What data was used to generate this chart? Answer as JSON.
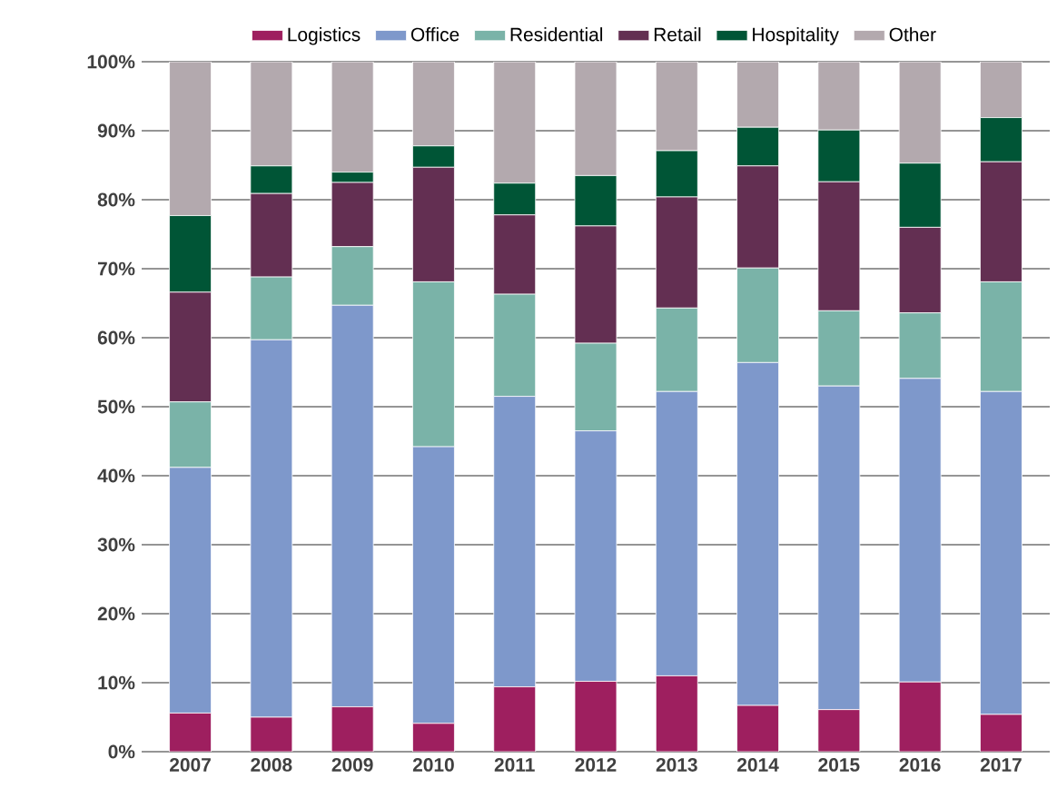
{
  "chart_data": {
    "type": "bar",
    "stacked": true,
    "legend": "top",
    "grid": "y",
    "categories": [
      "2007",
      "2008",
      "2009",
      "2010",
      "2011",
      "2012",
      "2013",
      "2014",
      "2015",
      "2016",
      "2017"
    ],
    "series": [
      {
        "name": "Logistics",
        "color": "#9e1f5f",
        "values": [
          5.6,
          5.0,
          6.5,
          4.1,
          9.4,
          10.2,
          11.0,
          6.7,
          6.1,
          10.1,
          5.4
        ]
      },
      {
        "name": "Office",
        "color": "#7e98cb",
        "values": [
          35.6,
          54.7,
          58.2,
          40.1,
          42.1,
          36.3,
          41.2,
          49.7,
          46.9,
          44.0,
          46.8
        ]
      },
      {
        "name": "Residential",
        "color": "#7ab3a8",
        "values": [
          9.5,
          9.1,
          8.5,
          23.9,
          14.8,
          12.7,
          12.1,
          13.7,
          10.9,
          9.5,
          15.9
        ]
      },
      {
        "name": "Retail",
        "color": "#632f52",
        "values": [
          15.9,
          12.1,
          9.3,
          16.6,
          11.5,
          17.0,
          16.1,
          14.8,
          18.7,
          12.4,
          17.4
        ]
      },
      {
        "name": "Hospitality",
        "color": "#005536",
        "values": [
          11.1,
          4.0,
          1.5,
          3.1,
          4.6,
          7.3,
          6.7,
          5.6,
          7.5,
          9.3,
          6.4
        ]
      },
      {
        "name": "Other",
        "color": "#b3a9ae",
        "values": [
          22.3,
          15.1,
          16.0,
          12.2,
          17.6,
          16.5,
          12.9,
          9.5,
          9.9,
          14.7,
          8.1
        ]
      }
    ],
    "ylim": [
      0,
      100
    ],
    "yticks": [
      {
        "value": 0,
        "label": "0%"
      },
      {
        "value": 10,
        "label": "10%"
      },
      {
        "value": 20,
        "label": "20%"
      },
      {
        "value": 30,
        "label": "30%"
      },
      {
        "value": 40,
        "label": "40%"
      },
      {
        "value": 50,
        "label": "50%"
      },
      {
        "value": 60,
        "label": "60%"
      },
      {
        "value": 70,
        "label": "70%"
      },
      {
        "value": 80,
        "label": "80%"
      },
      {
        "value": 90,
        "label": "90%"
      },
      {
        "value": 100,
        "label": "100%"
      }
    ]
  }
}
